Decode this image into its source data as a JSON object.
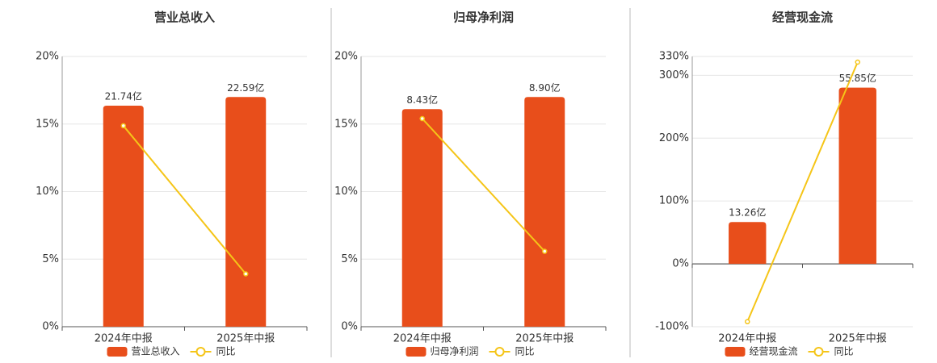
{
  "chart_data": [
    {
      "type": "bar",
      "title": "营业总收入",
      "categories": [
        "2024年中报",
        "2025年中报"
      ],
      "series": [
        {
          "name": "营业总收入",
          "color": "#e84e1b",
          "values": [
            21.74,
            22.59
          ],
          "value_labels": [
            "21.74亿",
            "22.59亿"
          ]
        },
        {
          "name": "同比",
          "color": "#f5c518",
          "values": [
            14.87,
            3.91
          ]
        }
      ],
      "ylim": [
        0,
        20
      ],
      "yticks": [
        {
          "value": 0,
          "label": "0%"
        },
        {
          "value": 5,
          "label": "5%"
        },
        {
          "value": 10,
          "label": "10%"
        },
        {
          "value": 15,
          "label": "15%"
        },
        {
          "value": 20,
          "label": "20%"
        }
      ],
      "grid": true
    },
    {
      "type": "bar",
      "title": "归母净利润",
      "categories": [
        "2024年中报",
        "2025年中报"
      ],
      "series": [
        {
          "name": "归母净利润",
          "color": "#e84e1b",
          "values": [
            8.43,
            8.9
          ],
          "value_labels": [
            "8.43亿",
            "8.90亿"
          ]
        },
        {
          "name": "同比",
          "color": "#f5c518",
          "values": [
            15.4,
            5.58
          ]
        }
      ],
      "ylim": [
        0,
        20
      ],
      "yticks": [
        {
          "value": 0,
          "label": "0%"
        },
        {
          "value": 5,
          "label": "5%"
        },
        {
          "value": 10,
          "label": "10%"
        },
        {
          "value": 15,
          "label": "15%"
        },
        {
          "value": 20,
          "label": "20%"
        }
      ],
      "grid": true
    },
    {
      "type": "bar",
      "title": "经营现金流",
      "categories": [
        "2024年中报",
        "2025年中报"
      ],
      "series": [
        {
          "name": "经营现金流",
          "color": "#e84e1b",
          "values": [
            13.26,
            55.85
          ],
          "value_labels": [
            "13.26亿",
            "55.85亿"
          ]
        },
        {
          "name": "同比",
          "color": "#f5c518",
          "values": [
            -92,
            321
          ]
        }
      ],
      "ylim": [
        -100,
        330
      ],
      "yticks": [
        {
          "value": -100,
          "label": "-100%"
        },
        {
          "value": 0,
          "label": "0%"
        },
        {
          "value": 100,
          "label": "100%"
        },
        {
          "value": 200,
          "label": "200%"
        },
        {
          "value": 300,
          "label": "300%"
        },
        {
          "value": 330,
          "label": "330%"
        }
      ],
      "grid": true
    }
  ]
}
